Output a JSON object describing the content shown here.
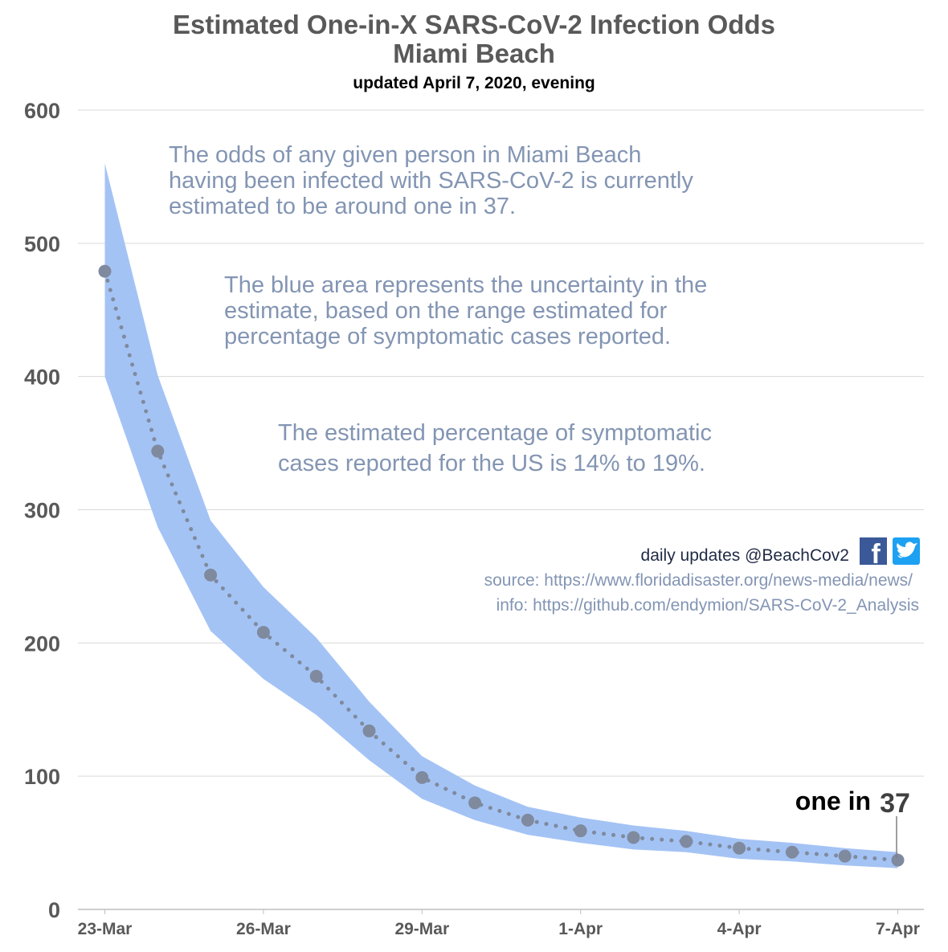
{
  "title": "Estimated One-in-X SARS-CoV-2 Infection Odds",
  "subtitle_place": "Miami Beach",
  "updated": "updated April 7, 2020, evening",
  "notes": [
    [
      "The odds of any given person in Miami Beach",
      "having been infected with SARS-CoV-2 is currently",
      "estimated to be around one in 37."
    ],
    [
      "The blue area represents the uncertainty in the",
      "estimate, based on the range estimated for",
      "percentage of symptomatic cases reported."
    ],
    [
      "The estimated percentage of symptomatic",
      "cases reported for the US is 14% to 19%."
    ]
  ],
  "social": {
    "text": "daily updates  @BeachCov2",
    "icons": [
      "facebook-icon",
      "twitter-icon"
    ],
    "facebook_color": "#3b5998",
    "twitter_color": "#1da1f2"
  },
  "source_lines": [
    "source: https://www.floridadisaster.org/news-media/news/",
    "info: https://github.com/endymion/SARS-CoV-2_Analysis"
  ],
  "callout": {
    "label": "one in",
    "value": "37"
  },
  "chart_data": {
    "type": "area",
    "x": [
      "23-Mar",
      "24-Mar",
      "25-Mar",
      "26-Mar",
      "27-Mar",
      "28-Mar",
      "29-Mar",
      "30-Mar",
      "31-Mar",
      "1-Apr",
      "2-Apr",
      "3-Apr",
      "4-Apr",
      "5-Apr",
      "6-Apr",
      "7-Apr"
    ],
    "x_tick_labels": [
      "23-Mar",
      "26-Mar",
      "29-Mar",
      "1-Apr",
      "4-Apr",
      "7-Apr"
    ],
    "ylim": [
      0,
      600
    ],
    "y_ticks": [
      0,
      100,
      200,
      300,
      400,
      500,
      600
    ],
    "grid": true,
    "legend": "none",
    "series": [
      {
        "values": [
          479,
          344,
          251,
          208,
          175,
          134,
          99,
          80,
          67,
          59,
          54,
          51,
          46,
          43,
          40,
          37
        ],
        "style": "dotted line with markers",
        "color": "#7f8a9e"
      },
      {
        "upper": [
          560,
          401,
          292,
          242,
          204,
          156,
          115,
          93,
          77,
          69,
          63,
          59,
          53,
          50,
          46,
          43
        ],
        "lower": [
          400,
          287,
          209,
          173,
          146,
          112,
          83,
          67,
          56,
          50,
          45,
          43,
          38,
          36,
          33,
          31
        ],
        "style": "band",
        "color": "#a4c3f5"
      }
    ]
  }
}
